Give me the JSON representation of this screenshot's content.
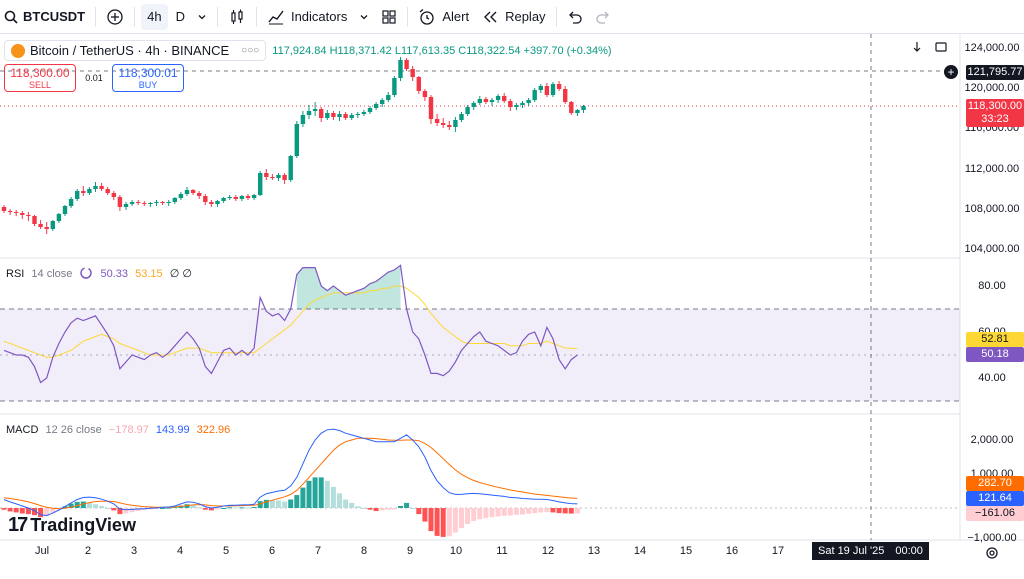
{
  "toolbar": {
    "symbol": "BTCUSDT",
    "timeframes": [
      "4h",
      "D"
    ],
    "indicators_label": "Indicators",
    "alert_label": "Alert",
    "replay_label": "Replay"
  },
  "legend": {
    "title": "Bitcoin / TetherUS · 4h · BINANCE",
    "open": "117,924.84",
    "high": "H118,371.42",
    "low": "L117,613.35",
    "close": "C118,322.54",
    "change": "+397.70 (+0.34%)"
  },
  "trade": {
    "sell_price": "118,300.00",
    "sell_label": "SELL",
    "spread": "0.01",
    "buy_price": "118,300.01",
    "buy_label": "BUY"
  },
  "price_axis": {
    "ticks": [
      "124,000.00",
      "120,000.00",
      "116,000.00",
      "112,000.00",
      "108,000.00",
      "104,000.00"
    ],
    "crosshair": "121,795.77",
    "last_price": "118,300.00",
    "countdown": "33:23"
  },
  "rsi": {
    "label": "RSI",
    "params": "14 close",
    "value": "50.33",
    "ma_value": "53.15",
    "extra": "∅ ∅",
    "ticks": [
      "80.00",
      "60.00",
      "40.00"
    ],
    "tag_ma": "52.81",
    "tag_rsi": "50.18"
  },
  "macd": {
    "label": "MACD",
    "params": "12 26 close",
    "hist": "−178.97",
    "macd": "143.99",
    "signal": "322.96",
    "ticks": [
      "2,000.00",
      "1,000.00",
      "−1,000.00"
    ],
    "tag_signal": "282.70",
    "tag_macd": "121.64",
    "tag_hist": "−161.06"
  },
  "time_axis": {
    "labels": [
      "Jul",
      "2",
      "3",
      "4",
      "5",
      "6",
      "7",
      "8",
      "9",
      "10",
      "11",
      "12",
      "13",
      "14",
      "15",
      "16",
      "17"
    ],
    "crosshair": "Sat 19 Jul '25",
    "crosshair_time": "00:00"
  },
  "brand": "TradingView",
  "colors": {
    "up": "#089981",
    "down": "#f23645",
    "rsi": "#7e57c2",
    "rsi_ma": "#fdd835",
    "macd": "#2962ff",
    "signal": "#ff6d00"
  },
  "chart_data": {
    "type": "candlestick",
    "ohlc": [
      [
        108200,
        108400,
        107600,
        107800
      ],
      [
        107800,
        108000,
        107400,
        107700
      ],
      [
        107700,
        107900,
        107300,
        107600
      ],
      [
        107600,
        107800,
        107000,
        107400
      ],
      [
        107400,
        107700,
        106800,
        107300
      ],
      [
        107300,
        107400,
        106300,
        106500
      ],
      [
        106500,
        106900,
        106000,
        106200
      ],
      [
        106200,
        106700,
        105500,
        106000
      ],
      [
        106000,
        106900,
        105800,
        106800
      ],
      [
        106800,
        107600,
        106600,
        107500
      ],
      [
        107500,
        108400,
        107300,
        108300
      ],
      [
        108300,
        109200,
        108100,
        109000
      ],
      [
        109000,
        110000,
        108800,
        109800
      ],
      [
        109800,
        110300,
        109300,
        109600
      ],
      [
        109600,
        110200,
        109400,
        110000
      ],
      [
        110000,
        110700,
        109700,
        110300
      ],
      [
        110300,
        110600,
        109800,
        110000
      ],
      [
        110000,
        110200,
        109400,
        109600
      ],
      [
        109600,
        109800,
        108900,
        109200
      ],
      [
        109200,
        109400,
        107800,
        108200
      ],
      [
        108200,
        108700,
        107900,
        108500
      ],
      [
        108500,
        108900,
        108300,
        108700
      ],
      [
        108700,
        108900,
        108400,
        108600
      ],
      [
        108600,
        108800,
        108300,
        108500
      ],
      [
        108500,
        108700,
        108200,
        108600
      ],
      [
        108600,
        108900,
        108300,
        108700
      ],
      [
        108700,
        108800,
        108400,
        108600
      ],
      [
        108600,
        108900,
        108300,
        108700
      ],
      [
        108700,
        109200,
        108500,
        109100
      ],
      [
        109100,
        109700,
        108900,
        109500
      ],
      [
        109500,
        110200,
        109300,
        109900
      ],
      [
        109900,
        110000,
        109400,
        109600
      ],
      [
        109600,
        109800,
        109000,
        109300
      ],
      [
        109300,
        109500,
        108400,
        108700
      ],
      [
        108700,
        108900,
        108200,
        108500
      ],
      [
        108500,
        108900,
        108200,
        108800
      ],
      [
        108800,
        109200,
        108600,
        109100
      ],
      [
        109100,
        109400,
        108900,
        109200
      ],
      [
        109200,
        109400,
        108800,
        109000
      ],
      [
        109000,
        109400,
        108800,
        109300
      ],
      [
        109300,
        109500,
        108900,
        109100
      ],
      [
        109100,
        109500,
        108900,
        109400
      ],
      [
        109400,
        111800,
        109300,
        111600
      ],
      [
        111600,
        112000,
        110900,
        111200
      ],
      [
        111200,
        111500,
        110900,
        111100
      ],
      [
        111100,
        111600,
        110800,
        111400
      ],
      [
        111400,
        111600,
        110500,
        110900
      ],
      [
        110900,
        113400,
        110700,
        113300
      ],
      [
        113300,
        116800,
        113100,
        116500
      ],
      [
        116500,
        117800,
        116200,
        117400
      ],
      [
        117400,
        118400,
        117000,
        117800
      ],
      [
        117800,
        118700,
        117300,
        118000
      ],
      [
        118000,
        118200,
        116700,
        117100
      ],
      [
        117100,
        117900,
        116900,
        117600
      ],
      [
        117600,
        117800,
        116900,
        117200
      ],
      [
        117200,
        117800,
        116800,
        117500
      ],
      [
        117500,
        117700,
        116900,
        117100
      ],
      [
        117100,
        117600,
        116900,
        117400
      ],
      [
        117400,
        117700,
        117100,
        117500
      ],
      [
        117500,
        117900,
        117300,
        117700
      ],
      [
        117700,
        118300,
        117500,
        118100
      ],
      [
        118100,
        118700,
        117900,
        118500
      ],
      [
        118500,
        119100,
        118200,
        118900
      ],
      [
        118900,
        119700,
        118700,
        119400
      ],
      [
        119400,
        121300,
        119200,
        121100
      ],
      [
        121100,
        123200,
        120800,
        122900
      ],
      [
        122900,
        123100,
        121800,
        122000
      ],
      [
        122000,
        122300,
        120800,
        121200
      ],
      [
        121200,
        121300,
        119500,
        119800
      ],
      [
        119800,
        120000,
        118800,
        119200
      ],
      [
        119200,
        119400,
        116500,
        117000
      ],
      [
        117000,
        117500,
        116300,
        116600
      ],
      [
        116600,
        117100,
        116100,
        116400
      ],
      [
        116400,
        116800,
        115900,
        116200
      ],
      [
        116200,
        117200,
        115700,
        116900
      ],
      [
        116900,
        117700,
        116700,
        117500
      ],
      [
        117500,
        118400,
        117300,
        118200
      ],
      [
        118200,
        118800,
        117900,
        118600
      ],
      [
        118600,
        119300,
        118400,
        119000
      ],
      [
        119000,
        119200,
        118500,
        118700
      ],
      [
        118700,
        119100,
        118300,
        118900
      ],
      [
        118900,
        119500,
        118600,
        119300
      ],
      [
        119300,
        119600,
        118600,
        118800
      ],
      [
        118800,
        119000,
        117800,
        118200
      ],
      [
        118200,
        118600,
        117900,
        118400
      ],
      [
        118400,
        118800,
        118100,
        118600
      ],
      [
        118600,
        119100,
        118300,
        118900
      ],
      [
        118900,
        120100,
        118700,
        119900
      ],
      [
        119900,
        120500,
        119600,
        120300
      ],
      [
        120300,
        120600,
        119200,
        119400
      ],
      [
        119400,
        120700,
        119200,
        120500
      ],
      [
        120500,
        120800,
        119800,
        120000
      ],
      [
        120000,
        120300,
        118500,
        118700
      ],
      [
        118700,
        118800,
        117400,
        117600
      ],
      [
        117600,
        118000,
        117300,
        117900
      ],
      [
        117900,
        118400,
        117600,
        118300
      ]
    ],
    "rsi": [
      52,
      51,
      50,
      50,
      49,
      45,
      38,
      40,
      49,
      55,
      60,
      64,
      66,
      65,
      66,
      67,
      63,
      59,
      54,
      44,
      47,
      50,
      49,
      48,
      50,
      51,
      49,
      51,
      54,
      57,
      60,
      57,
      53,
      45,
      42,
      47,
      52,
      53,
      50,
      52,
      50,
      53,
      75,
      69,
      67,
      68,
      65,
      70,
      85,
      88,
      88,
      88,
      80,
      78,
      80,
      78,
      76,
      77,
      78,
      79,
      81,
      82,
      84,
      86,
      87,
      89,
      70,
      60,
      57,
      50,
      42,
      42,
      41,
      43,
      47,
      52,
      55,
      58,
      60,
      56,
      55,
      54,
      52,
      50,
      51,
      56,
      59,
      60,
      54,
      62,
      57,
      48,
      44,
      48,
      50
    ],
    "rsi_ma": [
      56,
      55,
      54,
      53,
      52,
      51,
      50,
      49,
      49,
      50,
      51,
      52,
      54,
      56,
      57,
      58,
      59,
      58,
      57,
      55,
      54,
      53,
      52,
      51,
      50,
      50,
      50,
      50,
      51,
      52,
      53,
      53,
      53,
      52,
      51,
      51,
      51,
      51,
      51,
      51,
      51,
      51,
      53,
      55,
      57,
      59,
      61,
      63,
      66,
      69,
      72,
      74,
      75,
      76,
      77,
      77,
      77,
      77,
      77,
      77,
      78,
      78,
      79,
      79,
      80,
      80,
      79,
      77,
      75,
      72,
      68,
      65,
      62,
      60,
      58,
      56,
      55,
      55,
      55,
      55,
      55,
      55,
      55,
      54,
      54,
      54,
      55,
      55,
      55,
      56,
      55,
      54,
      53,
      53,
      52.8
    ],
    "macd": [
      250,
      180,
      120,
      60,
      0,
      -80,
      -200,
      -220,
      -150,
      -60,
      40,
      150,
      250,
      310,
      320,
      300,
      260,
      200,
      120,
      -30,
      -50,
      -40,
      -30,
      -20,
      -10,
      0,
      20,
      30,
      60,
      120,
      180,
      170,
      120,
      40,
      0,
      20,
      60,
      80,
      80,
      90,
      90,
      110,
      320,
      420,
      460,
      500,
      520,
      650,
      900,
      1300,
      1700,
      2000,
      2200,
      2300,
      2320,
      2280,
      2200,
      2150,
      2100,
      2050,
      2000,
      1950,
      1950,
      1950,
      1950,
      2050,
      2150,
      2000,
      1800,
      1500,
      1100,
      800,
      600,
      450,
      400,
      400,
      420,
      430,
      420,
      400,
      380,
      360,
      340,
      310,
      300,
      280,
      270,
      260,
      260,
      250,
      220,
      180,
      150,
      130,
      120
    ],
    "signal": [
      300,
      280,
      250,
      220,
      180,
      130,
      70,
      20,
      -10,
      -20,
      -10,
      20,
      70,
      120,
      160,
      190,
      200,
      200,
      190,
      150,
      110,
      80,
      60,
      40,
      30,
      20,
      20,
      20,
      30,
      50,
      70,
      90,
      100,
      90,
      70,
      60,
      60,
      60,
      65,
      70,
      75,
      80,
      120,
      180,
      230,
      280,
      330,
      400,
      520,
      700,
      900,
      1100,
      1300,
      1500,
      1700,
      1850,
      1950,
      2000,
      2050,
      2050,
      2050,
      2040,
      2020,
      2000,
      1990,
      1990,
      2000,
      2000,
      1980,
      1900,
      1780,
      1620,
      1450,
      1280,
      1120,
      990,
      890,
      810,
      750,
      700,
      650,
      610,
      570,
      530,
      500,
      470,
      440,
      410,
      390,
      370,
      350,
      330,
      310,
      295,
      282.7
    ],
    "hist": [
      -50,
      -100,
      -130,
      -160,
      -180,
      -210,
      -270,
      -240,
      -140,
      -40,
      50,
      130,
      180,
      190,
      160,
      110,
      60,
      0,
      -70,
      -180,
      -160,
      -120,
      -90,
      -60,
      -40,
      -20,
      0,
      10,
      30,
      70,
      110,
      80,
      20,
      -50,
      -70,
      -40,
      0,
      20,
      15,
      20,
      15,
      30,
      200,
      240,
      230,
      220,
      190,
      250,
      380,
      600,
      800,
      900,
      900,
      800,
      620,
      430,
      250,
      150,
      50,
      0,
      -50,
      -90,
      -70,
      -50,
      -40,
      60,
      150,
      0,
      -180,
      -400,
      -680,
      -820,
      -850,
      -830,
      -720,
      -590,
      -470,
      -380,
      -330,
      -300,
      -270,
      -250,
      -230,
      -220,
      -200,
      -190,
      -170,
      -150,
      -130,
      -120,
      -130,
      -150,
      -160,
      -165,
      -161
    ]
  }
}
